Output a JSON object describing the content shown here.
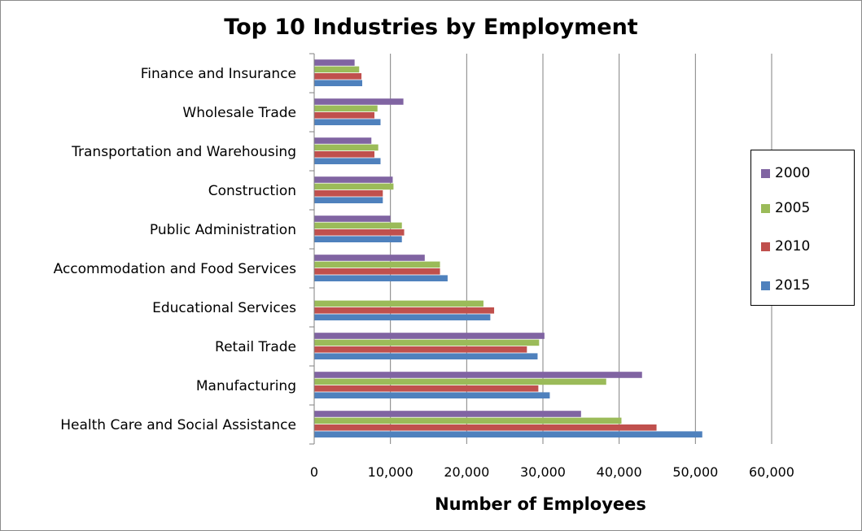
{
  "colors": {
    "2000": "#8064a2",
    "2005": "#9bbb59",
    "2010": "#c0504d",
    "2015": "#4f81bd",
    "gridline": "#808080",
    "frame": "#8c8c8c"
  },
  "chart_data": {
    "type": "bar",
    "orientation": "horizontal",
    "title": "Top 10 Industries by Employment",
    "xlabel": "Number of Employees",
    "ylabel": "",
    "xlim": [
      0,
      60000
    ],
    "x_ticks": [
      "0",
      "10,000",
      "20,000",
      "30,000",
      "40,000",
      "50,000",
      "60,000"
    ],
    "grid": true,
    "legend_position": "right",
    "categories": [
      "Finance and Insurance",
      "Wholesale Trade",
      "Transportation and Warehousing",
      "Construction",
      "Public Administration",
      "Accommodation and Food Services",
      "Educational Services",
      "Retail Trade",
      "Manufacturing",
      "Health Care and Social Assistance"
    ],
    "series": [
      {
        "name": "2000",
        "values": [
          5300,
          11700,
          7500,
          10300,
          10000,
          14500,
          0,
          30200,
          43000,
          35000
        ]
      },
      {
        "name": "2005",
        "values": [
          5900,
          8300,
          8400,
          10400,
          11500,
          16500,
          22200,
          29500,
          38300,
          40300
        ]
      },
      {
        "name": "2010",
        "values": [
          6200,
          7900,
          7900,
          9000,
          11800,
          16500,
          23600,
          27900,
          29400,
          44900
        ]
      },
      {
        "name": "2015",
        "values": [
          6300,
          8700,
          8700,
          9000,
          11500,
          17500,
          23100,
          29300,
          30900,
          50900
        ]
      }
    ]
  }
}
